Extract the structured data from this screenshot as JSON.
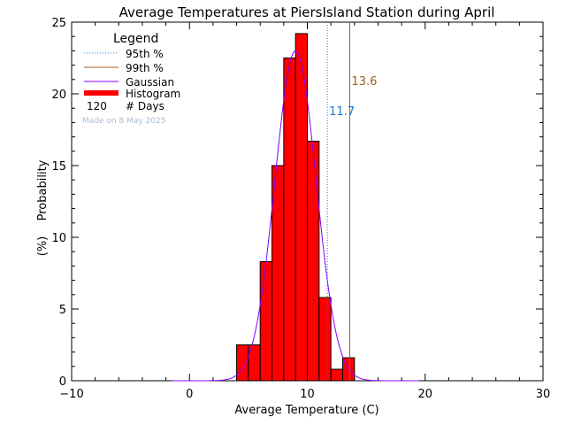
{
  "chart_data": {
    "type": "bar",
    "title": "Average Temperatures at PiersIsland Station during April",
    "xlabel": "Average Temperature (C)",
    "ylabel_line1": "Probability",
    "ylabel_line2": "(%)",
    "xlim": [
      -10,
      30
    ],
    "ylim": [
      0,
      25
    ],
    "xticks": [
      -10,
      0,
      10,
      20,
      30
    ],
    "yticks": [
      0,
      5,
      10,
      15,
      20,
      25
    ],
    "histogram": {
      "bin_width": 1,
      "bin_starts": [
        4,
        5,
        6,
        7,
        8,
        9,
        10,
        11,
        12,
        13
      ],
      "values": [
        2.5,
        2.5,
        8.3,
        15.0,
        22.5,
        24.2,
        16.7,
        5.8,
        0.8,
        1.6
      ],
      "color": "#ff0000"
    },
    "gaussian": {
      "mean": 9.0,
      "sigma": 1.75,
      "peak": 23.0,
      "color": "#8000ff"
    },
    "percentiles": [
      {
        "name": "95th %",
        "value": 11.7,
        "label": "11.7",
        "color": "#1e78d0",
        "style": "dotted"
      },
      {
        "name": "99th %",
        "value": 13.6,
        "label": "13.6",
        "color": "#a0601e",
        "style": "solid"
      }
    ],
    "legend": {
      "title": "Legend",
      "placement": "top-left",
      "entries": [
        "95th %",
        "99th %",
        "Gaussian",
        "Histogram"
      ],
      "count_value": "120",
      "count_label": "# Days"
    },
    "watermark": "Made on 8 May 2025"
  }
}
